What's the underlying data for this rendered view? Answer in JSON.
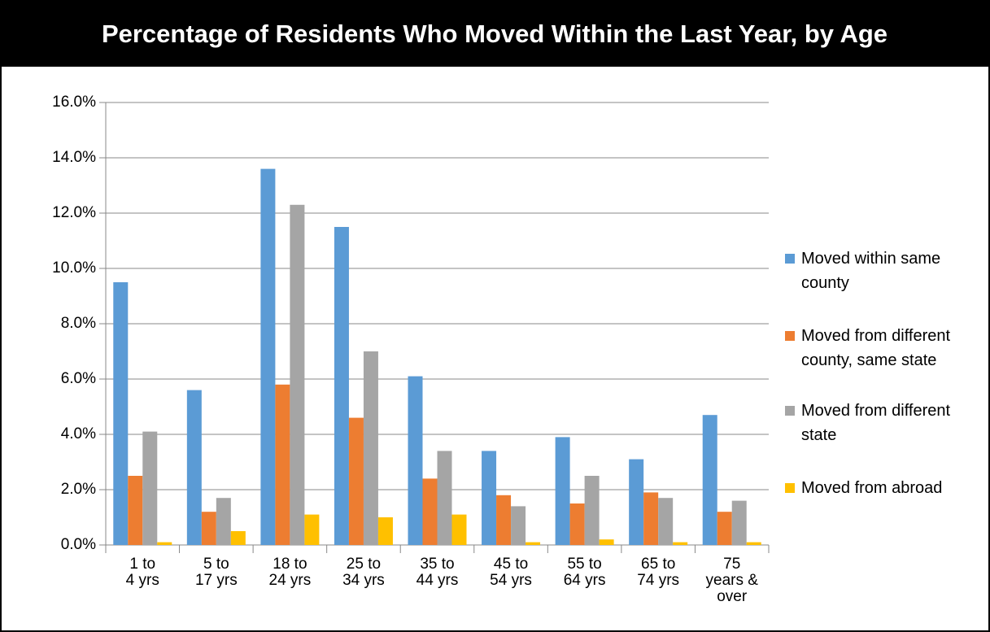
{
  "chart_data": {
    "type": "bar",
    "title": "Percentage of Residents Who Moved Within the Last Year, by Age",
    "categories": [
      "1 to\n4 yrs",
      "5 to\n17 yrs",
      "18 to\n24 yrs",
      "25 to\n34 yrs",
      "35 to\n44 yrs",
      "45 to\n54 yrs",
      "55 to\n64 yrs",
      "65 to\n74 yrs",
      "75\nyears &\nover"
    ],
    "series": [
      {
        "name": "Moved within same county",
        "color": "#5b9bd5",
        "values": [
          9.5,
          5.6,
          13.6,
          11.5,
          6.1,
          3.4,
          3.9,
          3.1,
          4.7
        ]
      },
      {
        "name": "Moved from different county, same state",
        "color": "#ed7d31",
        "values": [
          2.5,
          1.2,
          5.8,
          4.6,
          2.4,
          1.8,
          1.5,
          1.9,
          1.2
        ]
      },
      {
        "name": "Moved from different  state",
        "color": "#a5a5a5",
        "values": [
          4.1,
          1.7,
          12.3,
          7.0,
          3.4,
          1.4,
          2.5,
          1.7,
          1.6
        ]
      },
      {
        "name": "Moved from abroad",
        "color": "#ffc000",
        "values": [
          0.1,
          0.5,
          1.1,
          1.0,
          1.1,
          0.1,
          0.2,
          0.1,
          0.1
        ]
      }
    ],
    "ylim": [
      0,
      16
    ],
    "yticks": [
      {
        "value": 0,
        "label": "0.0%"
      },
      {
        "value": 2,
        "label": "2.0%"
      },
      {
        "value": 4,
        "label": "4.0%"
      },
      {
        "value": 6,
        "label": "6.0%"
      },
      {
        "value": 8,
        "label": "8.0%"
      },
      {
        "value": 10,
        "label": "10.0%"
      },
      {
        "value": 12,
        "label": "12.0%"
      },
      {
        "value": 14,
        "label": "14.0%"
      },
      {
        "value": 16,
        "label": "16.0%"
      }
    ],
    "grid": true,
    "legend": "right"
  }
}
